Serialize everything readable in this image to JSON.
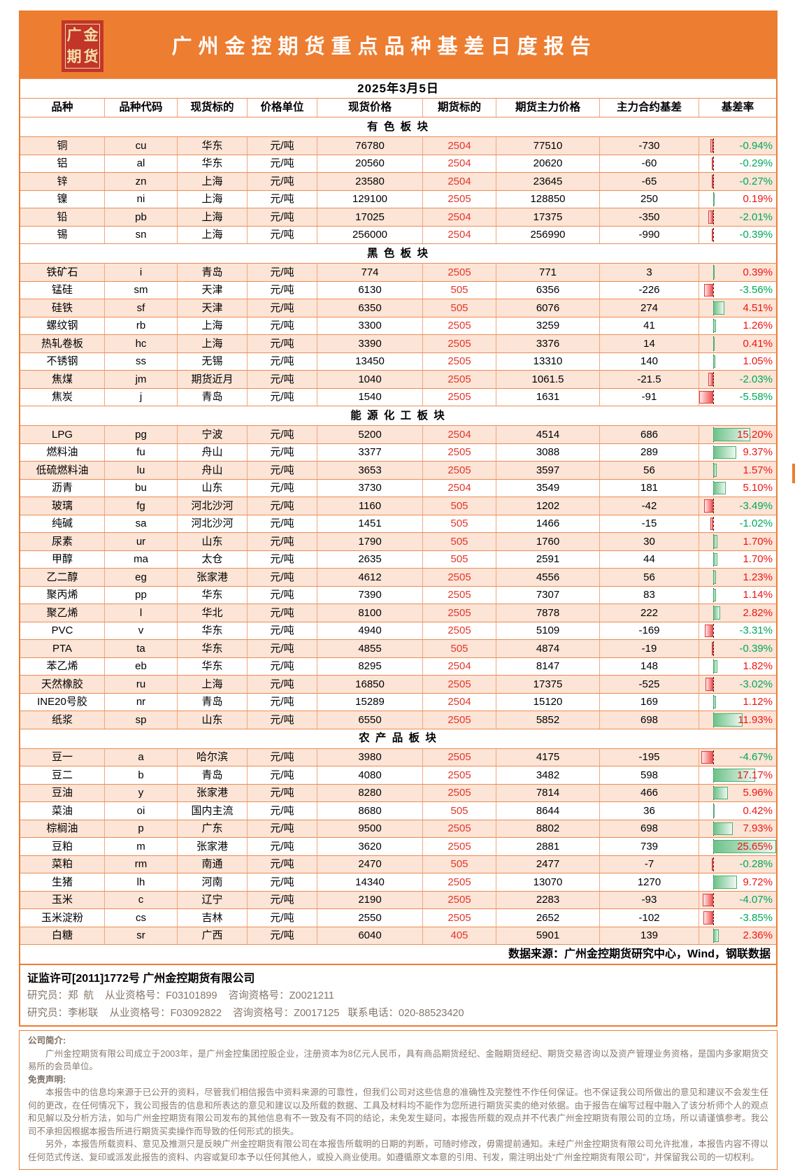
{
  "brand": {
    "logo_chars": [
      "广",
      "金",
      "期",
      "货"
    ],
    "title": "广州金控期货重点品种基差日度报告"
  },
  "report": {
    "date": "2025年3月5日",
    "source_note": "数据来源：广州金控期货研究中心，Wind，钢联数据"
  },
  "colors": {
    "accent_orange": "#ED7D31",
    "row_alt_peach": "#FCE4D6",
    "contract_red": "#E3362B",
    "rate_positive_red": "#F01414",
    "rate_negative_green": "#00A859",
    "bar_positive_green": "#63C384",
    "bar_negative_red": "#F25050",
    "logo_red": "#C23528",
    "logo_gold": "#F2DFA9"
  },
  "table": {
    "columns": [
      "品种",
      "品种代码",
      "现货标的",
      "价格单位",
      "现货价格",
      "期货标的",
      "期货主力价格",
      "主力合约基差",
      "基差率"
    ],
    "sections": [
      {
        "name": "有色板块",
        "display": "有 色 板 块",
        "rows": [
          {
            "variety": "铜",
            "code": "cu",
            "spot_target": "华东",
            "unit": "元/吨",
            "spot_price": "76780",
            "contract": "2504",
            "futures_price": "77510",
            "basis": "-730",
            "rate_label": "-0.94%",
            "rate": -0.94
          },
          {
            "variety": "铝",
            "code": "al",
            "spot_target": "华东",
            "unit": "元/吨",
            "spot_price": "20560",
            "contract": "2504",
            "futures_price": "20620",
            "basis": "-60",
            "rate_label": "-0.29%",
            "rate": -0.29
          },
          {
            "variety": "锌",
            "code": "zn",
            "spot_target": "上海",
            "unit": "元/吨",
            "spot_price": "23580",
            "contract": "2504",
            "futures_price": "23645",
            "basis": "-65",
            "rate_label": "-0.27%",
            "rate": -0.27
          },
          {
            "variety": "镍",
            "code": "ni",
            "spot_target": "上海",
            "unit": "元/吨",
            "spot_price": "129100",
            "contract": "2505",
            "futures_price": "128850",
            "basis": "250",
            "rate_label": "0.19%",
            "rate": 0.19
          },
          {
            "variety": "铅",
            "code": "pb",
            "spot_target": "上海",
            "unit": "元/吨",
            "spot_price": "17025",
            "contract": "2504",
            "futures_price": "17375",
            "basis": "-350",
            "rate_label": "-2.01%",
            "rate": -2.01
          },
          {
            "variety": "锡",
            "code": "sn",
            "spot_target": "上海",
            "unit": "元/吨",
            "spot_price": "256000",
            "contract": "2504",
            "futures_price": "256990",
            "basis": "-990",
            "rate_label": "-0.39%",
            "rate": -0.39
          }
        ]
      },
      {
        "name": "黑色板块",
        "display": "黑 色 板 块",
        "rows": [
          {
            "variety": "铁矿石",
            "code": "i",
            "spot_target": "青岛",
            "unit": "元/吨",
            "spot_price": "774",
            "contract": "2505",
            "futures_price": "771",
            "basis": "3",
            "rate_label": "0.39%",
            "rate": 0.39
          },
          {
            "variety": "锰硅",
            "code": "sm",
            "spot_target": "天津",
            "unit": "元/吨",
            "spot_price": "6130",
            "contract": "505",
            "futures_price": "6356",
            "basis": "-226",
            "rate_label": "-3.56%",
            "rate": -3.56
          },
          {
            "variety": "硅铁",
            "code": "sf",
            "spot_target": "天津",
            "unit": "元/吨",
            "spot_price": "6350",
            "contract": "505",
            "futures_price": "6076",
            "basis": "274",
            "rate_label": "4.51%",
            "rate": 4.51
          },
          {
            "variety": "螺纹钢",
            "code": "rb",
            "spot_target": "上海",
            "unit": "元/吨",
            "spot_price": "3300",
            "contract": "2505",
            "futures_price": "3259",
            "basis": "41",
            "rate_label": "1.26%",
            "rate": 1.26
          },
          {
            "variety": "热轧卷板",
            "code": "hc",
            "spot_target": "上海",
            "unit": "元/吨",
            "spot_price": "3390",
            "contract": "2505",
            "futures_price": "3376",
            "basis": "14",
            "rate_label": "0.41%",
            "rate": 0.41
          },
          {
            "variety": "不锈钢",
            "code": "ss",
            "spot_target": "无锡",
            "unit": "元/吨",
            "spot_price": "13450",
            "contract": "2505",
            "futures_price": "13310",
            "basis": "140",
            "rate_label": "1.05%",
            "rate": 1.05
          },
          {
            "variety": "焦煤",
            "code": "jm",
            "spot_target": "期货近月",
            "unit": "元/吨",
            "spot_price": "1040",
            "contract": "2505",
            "futures_price": "1061.5",
            "basis": "-21.5",
            "rate_label": "-2.03%",
            "rate": -2.03
          },
          {
            "variety": "焦炭",
            "code": "j",
            "spot_target": "青岛",
            "unit": "元/吨",
            "spot_price": "1540",
            "contract": "2505",
            "futures_price": "1631",
            "basis": "-91",
            "rate_label": "-5.58%",
            "rate": -5.58
          }
        ]
      },
      {
        "name": "能源化工板块",
        "display": "能 源 化 工 板 块",
        "rows": [
          {
            "variety": "LPG",
            "code": "pg",
            "spot_target": "宁波",
            "unit": "元/吨",
            "spot_price": "5200",
            "contract": "2504",
            "futures_price": "4514",
            "basis": "686",
            "rate_label": "15.20%",
            "rate": 15.2
          },
          {
            "variety": "燃料油",
            "code": "fu",
            "spot_target": "舟山",
            "unit": "元/吨",
            "spot_price": "3377",
            "contract": "2505",
            "futures_price": "3088",
            "basis": "289",
            "rate_label": "9.37%",
            "rate": 9.37
          },
          {
            "variety": "低硫燃料油",
            "code": "lu",
            "spot_target": "舟山",
            "unit": "元/吨",
            "spot_price": "3653",
            "contract": "2505",
            "futures_price": "3597",
            "basis": "56",
            "rate_label": "1.57%",
            "rate": 1.57
          },
          {
            "variety": "沥青",
            "code": "bu",
            "spot_target": "山东",
            "unit": "元/吨",
            "spot_price": "3730",
            "contract": "2504",
            "futures_price": "3549",
            "basis": "181",
            "rate_label": "5.10%",
            "rate": 5.1
          },
          {
            "variety": "玻璃",
            "code": "fg",
            "spot_target": "河北沙河",
            "unit": "元/吨",
            "spot_price": "1160",
            "contract": "505",
            "futures_price": "1202",
            "basis": "-42",
            "rate_label": "-3.49%",
            "rate": -3.49
          },
          {
            "variety": "纯碱",
            "code": "sa",
            "spot_target": "河北沙河",
            "unit": "元/吨",
            "spot_price": "1451",
            "contract": "505",
            "futures_price": "1466",
            "basis": "-15",
            "rate_label": "-1.02%",
            "rate": -1.02
          },
          {
            "variety": "尿素",
            "code": "ur",
            "spot_target": "山东",
            "unit": "元/吨",
            "spot_price": "1790",
            "contract": "505",
            "futures_price": "1760",
            "basis": "30",
            "rate_label": "1.70%",
            "rate": 1.7
          },
          {
            "variety": "甲醇",
            "code": "ma",
            "spot_target": "太仓",
            "unit": "元/吨",
            "spot_price": "2635",
            "contract": "505",
            "futures_price": "2591",
            "basis": "44",
            "rate_label": "1.70%",
            "rate": 1.7
          },
          {
            "variety": "乙二醇",
            "code": "eg",
            "spot_target": "张家港",
            "unit": "元/吨",
            "spot_price": "4612",
            "contract": "2505",
            "futures_price": "4556",
            "basis": "56",
            "rate_label": "1.23%",
            "rate": 1.23
          },
          {
            "variety": "聚丙烯",
            "code": "pp",
            "spot_target": "华东",
            "unit": "元/吨",
            "spot_price": "7390",
            "contract": "2505",
            "futures_price": "7307",
            "basis": "83",
            "rate_label": "1.14%",
            "rate": 1.14
          },
          {
            "variety": "聚乙烯",
            "code": "l",
            "spot_target": "华北",
            "unit": "元/吨",
            "spot_price": "8100",
            "contract": "2505",
            "futures_price": "7878",
            "basis": "222",
            "rate_label": "2.82%",
            "rate": 2.82
          },
          {
            "variety": "PVC",
            "code": "v",
            "spot_target": "华东",
            "unit": "元/吨",
            "spot_price": "4940",
            "contract": "2505",
            "futures_price": "5109",
            "basis": "-169",
            "rate_label": "-3.31%",
            "rate": -3.31
          },
          {
            "variety": "PTA",
            "code": "ta",
            "spot_target": "华东",
            "unit": "元/吨",
            "spot_price": "4855",
            "contract": "505",
            "futures_price": "4874",
            "basis": "-19",
            "rate_label": "-0.39%",
            "rate": -0.39
          },
          {
            "variety": "苯乙烯",
            "code": "eb",
            "spot_target": "华东",
            "unit": "元/吨",
            "spot_price": "8295",
            "contract": "2504",
            "futures_price": "8147",
            "basis": "148",
            "rate_label": "1.82%",
            "rate": 1.82
          },
          {
            "variety": "天然橡胶",
            "code": "ru",
            "spot_target": "上海",
            "unit": "元/吨",
            "spot_price": "16850",
            "contract": "2505",
            "futures_price": "17375",
            "basis": "-525",
            "rate_label": "-3.02%",
            "rate": -3.02
          },
          {
            "variety": "INE20号胶",
            "code": "nr",
            "spot_target": "青岛",
            "unit": "元/吨",
            "spot_price": "15289",
            "contract": "2504",
            "futures_price": "15120",
            "basis": "169",
            "rate_label": "1.12%",
            "rate": 1.12
          },
          {
            "variety": "纸浆",
            "code": "sp",
            "spot_target": "山东",
            "unit": "元/吨",
            "spot_price": "6550",
            "contract": "2505",
            "futures_price": "5852",
            "basis": "698",
            "rate_label": "11.93%",
            "rate": 11.93
          }
        ]
      },
      {
        "name": "农产品板块",
        "display": "农 产 品 板 块",
        "rows": [
          {
            "variety": "豆一",
            "code": "a",
            "spot_target": "哈尔滨",
            "unit": "元/吨",
            "spot_price": "3980",
            "contract": "2505",
            "futures_price": "4175",
            "basis": "-195",
            "rate_label": "-4.67%",
            "rate": -4.67
          },
          {
            "variety": "豆二",
            "code": "b",
            "spot_target": "青岛",
            "unit": "元/吨",
            "spot_price": "4080",
            "contract": "2505",
            "futures_price": "3482",
            "basis": "598",
            "rate_label": "17.17%",
            "rate": 17.17
          },
          {
            "variety": "豆油",
            "code": "y",
            "spot_target": "张家港",
            "unit": "元/吨",
            "spot_price": "8280",
            "contract": "2505",
            "futures_price": "7814",
            "basis": "466",
            "rate_label": "5.96%",
            "rate": 5.96
          },
          {
            "variety": "菜油",
            "code": "oi",
            "spot_target": "国内主流",
            "unit": "元/吨",
            "spot_price": "8680",
            "contract": "505",
            "futures_price": "8644",
            "basis": "36",
            "rate_label": "0.42%",
            "rate": 0.42
          },
          {
            "variety": "棕榈油",
            "code": "p",
            "spot_target": "广东",
            "unit": "元/吨",
            "spot_price": "9500",
            "contract": "2505",
            "futures_price": "8802",
            "basis": "698",
            "rate_label": "7.93%",
            "rate": 7.93
          },
          {
            "variety": "豆粕",
            "code": "m",
            "spot_target": "张家港",
            "unit": "元/吨",
            "spot_price": "3620",
            "contract": "2505",
            "futures_price": "2881",
            "basis": "739",
            "rate_label": "25.65%",
            "rate": 25.65
          },
          {
            "variety": "菜粕",
            "code": "rm",
            "spot_target": "南通",
            "unit": "元/吨",
            "spot_price": "2470",
            "contract": "505",
            "futures_price": "2477",
            "basis": "-7",
            "rate_label": "-0.28%",
            "rate": -0.28
          },
          {
            "variety": "生猪",
            "code": "lh",
            "spot_target": "河南",
            "unit": "元/吨",
            "spot_price": "14340",
            "contract": "2505",
            "futures_price": "13070",
            "basis": "1270",
            "rate_label": "9.72%",
            "rate": 9.72
          },
          {
            "variety": "玉米",
            "code": "c",
            "spot_target": "辽宁",
            "unit": "元/吨",
            "spot_price": "2190",
            "contract": "2505",
            "futures_price": "2283",
            "basis": "-93",
            "rate_label": "-4.07%",
            "rate": -4.07
          },
          {
            "variety": "玉米淀粉",
            "code": "cs",
            "spot_target": "吉林",
            "unit": "元/吨",
            "spot_price": "2550",
            "contract": "2505",
            "futures_price": "2652",
            "basis": "-102",
            "rate_label": "-3.85%",
            "rate": -3.85
          },
          {
            "variety": "白糖",
            "code": "sr",
            "spot_target": "广西",
            "unit": "元/吨",
            "spot_price": "6040",
            "contract": "405",
            "futures_price": "5901",
            "basis": "139",
            "rate_label": "2.36%",
            "rate": 2.36
          }
        ]
      }
    ]
  },
  "footer": {
    "license": "证监许可[2011]1772号 广州金控期货有限公司",
    "researcher1": "研究员：郑  航    从业资格号：F03101899    咨询资格号：Z0021211",
    "researcher2": "研究员：李彬联    从业资格号：F03092822    咨询资格号：Z0017125   联系电话：020-88523420",
    "company_intro_title": "公司简介:",
    "company_intro": "广州金控期货有限公司成立于2003年，是广州金控集团控股企业，注册资本为8亿元人民币，具有商品期货经纪、金融期货经纪、期货交易咨询以及资产管理业务资格，是国内多家期货交易所的会员单位。",
    "disclaimer_title": "免责声明:",
    "disclaimer_p1": "本报告中的信息均来源于已公开的资料，尽管我们相信报告中资料来源的可靠性，但我们公司对这些信息的准确性及完整性不作任何保证。也不保证我公司所做出的意见和建议不会发生任何的更改，在任何情况下，我公司报告的信息和所表达的意见和建议以及所载的数据、工具及材料均不能作为您所进行期货买卖的绝对依据。由于报告在编写过程中融入了该分析师个人的观点和见解以及分析方法，如与广州金控期货有限公司发布的其他信息有不一致及有不同的结论，未免发生疑问，本报告所载的观点并不代表广州金控期货有限公司的立场，所以请谨慎参考。我公司不承担因根据本报告所进行期货买卖操作而导致的任何形式的损失。",
    "disclaimer_p2": "另外，本报告所载资料、意见及推测只是反映广州金控期货有限公司在本报告所载明的日期的判断，可随时修改，毋需提前通知。未经广州金控期货有限公司允许批准，本报告内容不得以任何范式传送、复印或派发此报告的资料、内容或复印本予以任何其他人，或投入商业使用。如遵循原文本意的引用、刊发，需注明出处“广州金控期货有限公司”，并保留我公司的一切权利。"
  }
}
